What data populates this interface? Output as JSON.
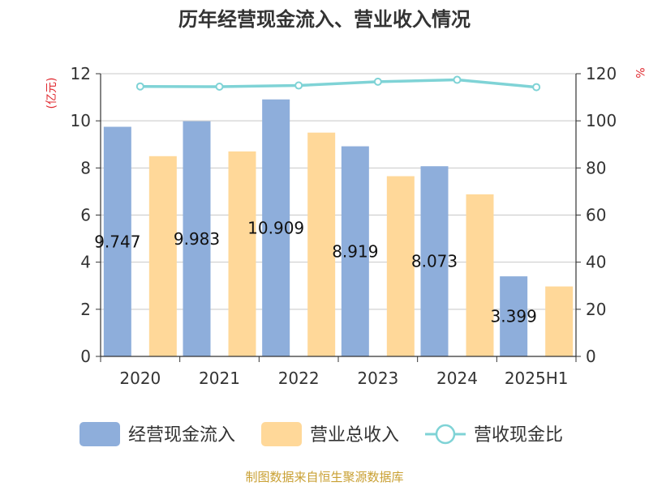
{
  "chart_data": {
    "type": "bar",
    "title": "历年经营现金流入、营业收入情况",
    "categories": [
      "2020",
      "2021",
      "2022",
      "2023",
      "2024",
      "2025H1"
    ],
    "series": [
      {
        "name": "经营现金流入",
        "type": "bar",
        "axis": "left",
        "color": "#8eaedb",
        "values": [
          9.747,
          9.983,
          10.909,
          8.919,
          8.073,
          3.399
        ],
        "labels": [
          "9.747",
          "9.983",
          "10.909",
          "8.919",
          "8.073",
          "3.399"
        ]
      },
      {
        "name": "营业总收入",
        "type": "bar",
        "axis": "left",
        "color": "#ffd899",
        "values": [
          8.5,
          8.7,
          9.5,
          7.65,
          6.88,
          2.97
        ]
      },
      {
        "name": "营收现金比",
        "type": "line",
        "axis": "right",
        "color": "#7fd3d6",
        "values": [
          114.6,
          114.5,
          115.0,
          116.6,
          117.4,
          114.3
        ]
      }
    ],
    "y_left": {
      "label": "(亿元)",
      "range": [
        0,
        12
      ],
      "ticks": [
        "0",
        "2",
        "4",
        "6",
        "8",
        "10",
        "12"
      ]
    },
    "y_right": {
      "label": "%",
      "range": [
        0,
        120
      ],
      "ticks": [
        "0",
        "20",
        "40",
        "60",
        "80",
        "100",
        "120"
      ]
    },
    "grid": true,
    "legend_position": "bottom"
  },
  "source": "制图数据来自恒生聚源数据库"
}
